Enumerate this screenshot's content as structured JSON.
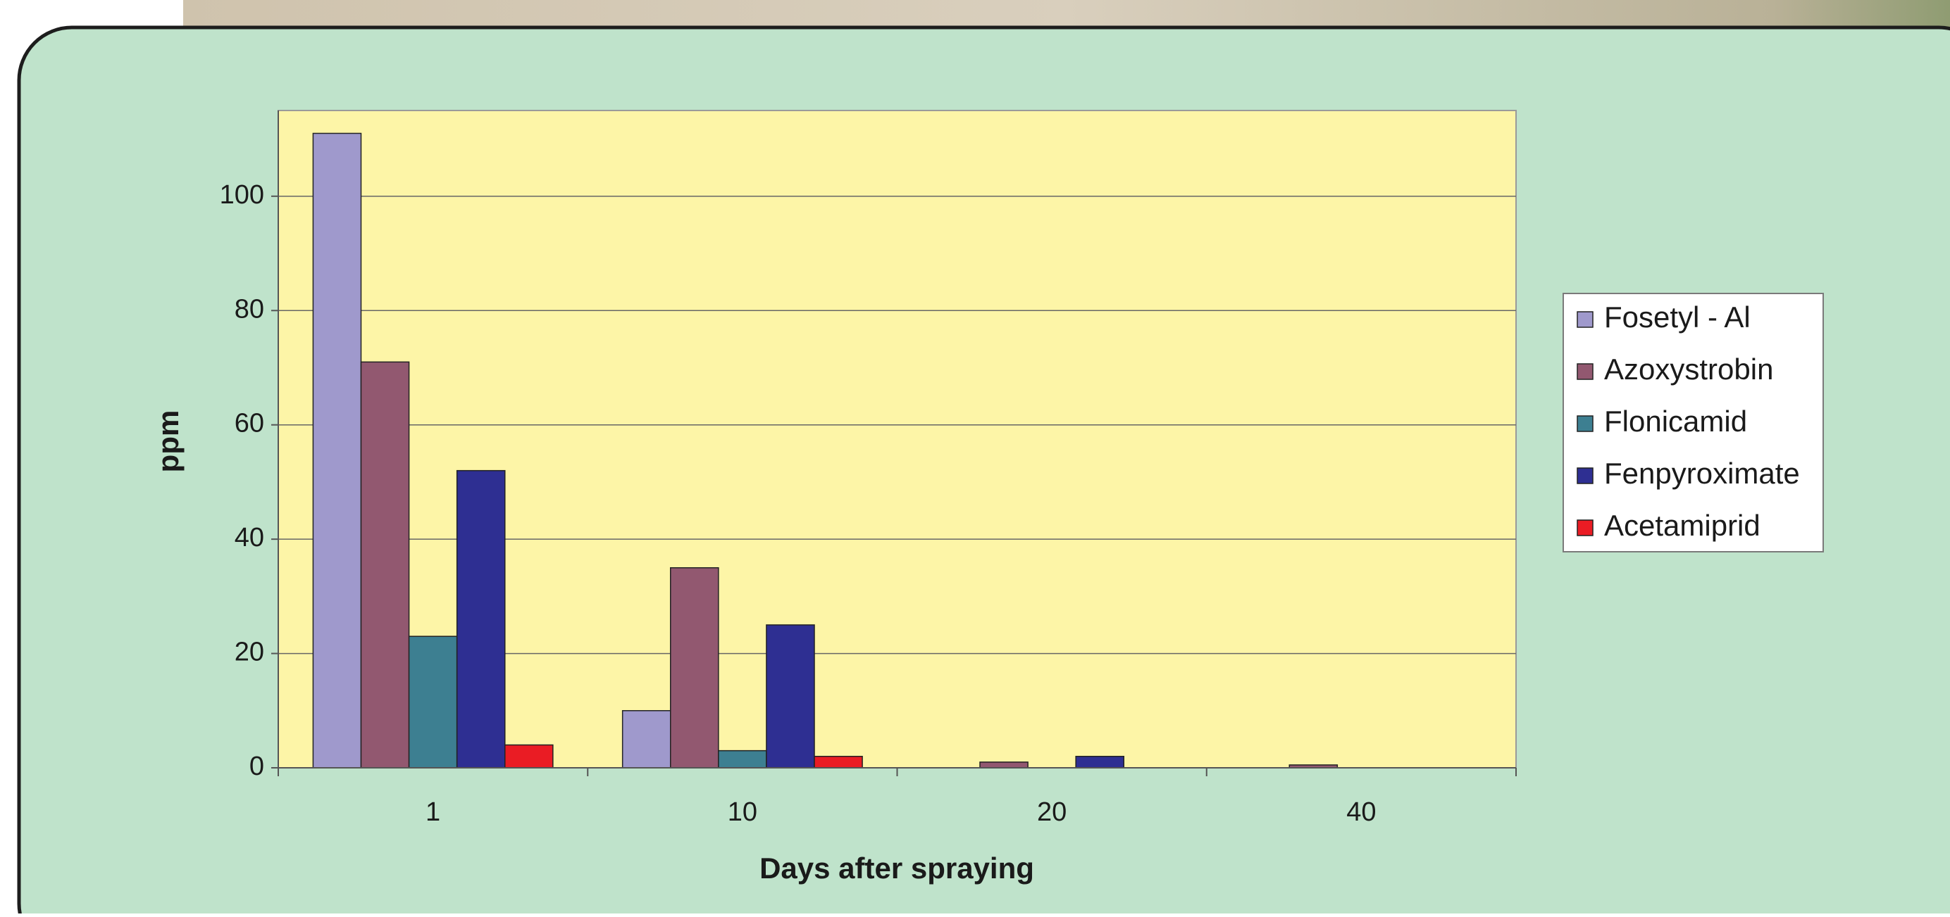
{
  "chart_data": {
    "type": "bar",
    "x_label": "Days after spraying",
    "y_label": "ppm",
    "categories": [
      "1",
      "10",
      "20",
      "40"
    ],
    "series": [
      {
        "name": "Fosetyl - Al",
        "color": "#9f99cc",
        "values": [
          111,
          10,
          0,
          0
        ]
      },
      {
        "name": "Azoxystrobin",
        "color": "#925870",
        "values": [
          71,
          35,
          1,
          0.5
        ]
      },
      {
        "name": "Flonicamid",
        "color": "#3d7f91",
        "values": [
          23,
          3,
          0,
          0
        ]
      },
      {
        "name": "Fenpyroximate",
        "color": "#2e2f92",
        "values": [
          52,
          25,
          2,
          0
        ]
      },
      {
        "name": "Acetamiprid",
        "color": "#ea1c24",
        "values": [
          4,
          2,
          0,
          0
        ]
      }
    ],
    "ylim": [
      0,
      115
    ],
    "yticks": [
      0,
      20,
      40,
      60,
      80,
      100
    ],
    "grid": true,
    "legend": "right"
  }
}
